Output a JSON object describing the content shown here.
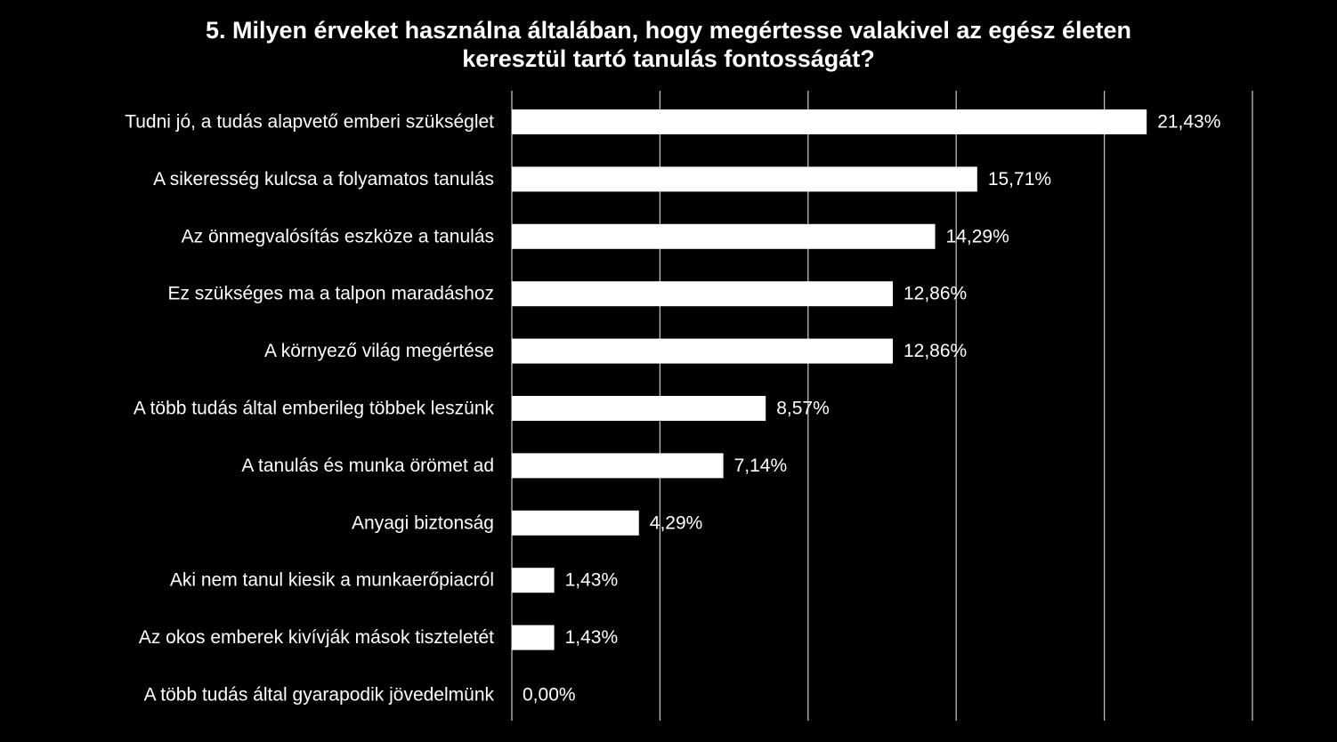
{
  "chart_data": {
    "type": "bar",
    "orientation": "horizontal",
    "title_lines": [
      "5. Milyen érveket használna általában, hogy megértesse valakivel az egész életen",
      "keresztül tartó tanulás fontosságát?"
    ],
    "categories": [
      "Tudni jó, a tudás alapvető emberi szükséglet",
      "A sikeresség kulcsa a folyamatos tanulás",
      "Az önmegvalósítás eszköze a tanulás",
      "Ez szükséges ma a talpon maradáshoz",
      "A környező világ megértése",
      "A több tudás által emberileg többek leszünk",
      "A tanulás és munka örömet ad",
      "Anyagi biztonság",
      "Aki nem tanul kiesik a munkaerőpiacról",
      "Az okos emberek kivívják mások tiszteletét",
      "A több tudás által gyarapodik jövedelmünk"
    ],
    "values": [
      21.43,
      15.71,
      14.29,
      12.86,
      12.86,
      8.57,
      7.14,
      4.29,
      1.43,
      1.43,
      0.0
    ],
    "value_labels": [
      "21,43%",
      "15,71%",
      "14,29%",
      "12,86%",
      "12,86%",
      "8,57%",
      "7,14%",
      "4,29%",
      "1,43%",
      "1,43%",
      "0,00%"
    ],
    "xlim": [
      0,
      25
    ],
    "grid": true,
    "legend": "none",
    "bar_color": "#ffffff",
    "background_color": "#000000",
    "text_color": "#ffffff",
    "grid_color": "#bdbdbd"
  }
}
